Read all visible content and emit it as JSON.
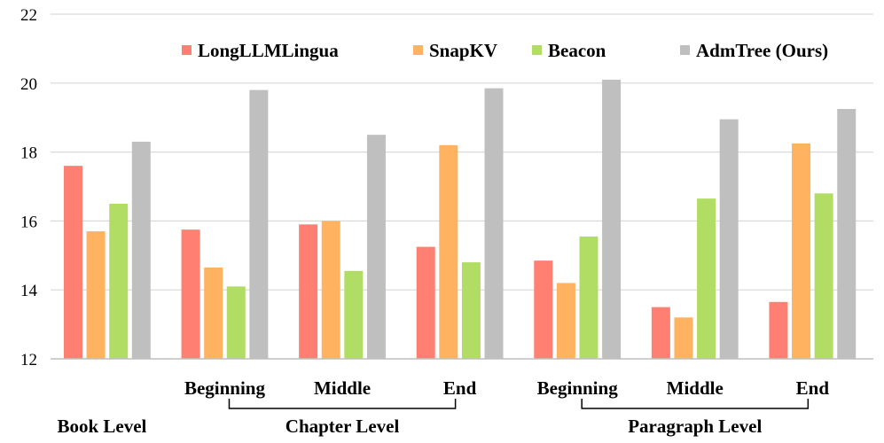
{
  "chart_data": {
    "type": "bar",
    "title": "",
    "xlabel": "",
    "ylabel": "",
    "ylim": [
      12,
      22
    ],
    "yticks": [
      12,
      14,
      16,
      18,
      20,
      22
    ],
    "grid": true,
    "legend_position": "top-right",
    "categories": [
      {
        "group": "Book Level",
        "label": ""
      },
      {
        "group": "Chapter Level",
        "label": "Beginning"
      },
      {
        "group": "Chapter Level",
        "label": "Middle"
      },
      {
        "group": "Chapter Level",
        "label": "End"
      },
      {
        "group": "Paragraph Level",
        "label": "Beginning"
      },
      {
        "group": "Paragraph Level",
        "label": "Middle"
      },
      {
        "group": "Paragraph Level",
        "label": "End"
      }
    ],
    "groups": [
      "Book Level",
      "Chapter Level",
      "Paragraph Level"
    ],
    "series": [
      {
        "name": "LongLLMLingua",
        "color": "#FF8072",
        "values": [
          17.6,
          15.75,
          15.9,
          15.25,
          14.85,
          13.5,
          13.65
        ]
      },
      {
        "name": "SnapKV",
        "color": "#FFB25F",
        "values": [
          15.7,
          14.65,
          16.0,
          18.2,
          14.2,
          13.2,
          18.25
        ]
      },
      {
        "name": "Beacon",
        "color": "#B2DD64",
        "values": [
          16.5,
          14.1,
          14.55,
          14.8,
          15.55,
          16.65,
          16.8
        ]
      },
      {
        "name": "AdmTree (Ours)",
        "color": "#BFBFBF",
        "values": [
          18.3,
          19.8,
          18.5,
          19.85,
          20.1,
          18.95,
          19.25
        ]
      }
    ]
  }
}
